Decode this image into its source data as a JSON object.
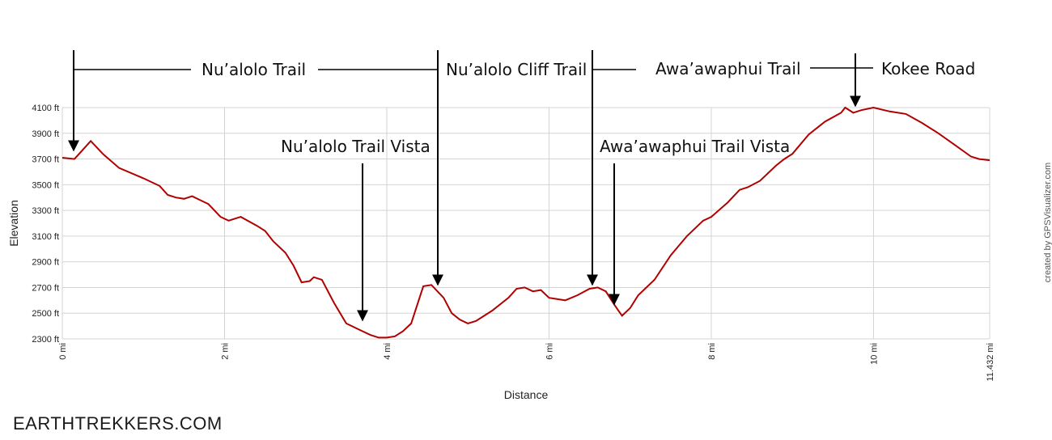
{
  "watermark": "EARTHTREKKERS.COM",
  "credit": "created by GPSVisualizer.com",
  "chart_data": {
    "type": "line",
    "title": "",
    "xlabel": "Distance",
    "ylabel": "Elevation",
    "xlim": [
      0,
      11.432
    ],
    "ylim": [
      2300,
      4100
    ],
    "x_ticks": [
      {
        "value": 0,
        "label": "0 mi"
      },
      {
        "value": 2,
        "label": "2 mi"
      },
      {
        "value": 4,
        "label": "4 mi"
      },
      {
        "value": 6,
        "label": "6 mi"
      },
      {
        "value": 8,
        "label": "8 mi"
      },
      {
        "value": 10,
        "label": "10 mi"
      },
      {
        "value": 11.432,
        "label": "11.432 mi"
      }
    ],
    "y_ticks": [
      {
        "value": 2300,
        "label": "2300 ft"
      },
      {
        "value": 2500,
        "label": "2500 ft"
      },
      {
        "value": 2700,
        "label": "2700 ft"
      },
      {
        "value": 2900,
        "label": "2900 ft"
      },
      {
        "value": 3100,
        "label": "3100 ft"
      },
      {
        "value": 3300,
        "label": "3300 ft"
      },
      {
        "value": 3500,
        "label": "3500 ft"
      },
      {
        "value": 3700,
        "label": "3700 ft"
      },
      {
        "value": 3900,
        "label": "3900 ft"
      },
      {
        "value": 4100,
        "label": "4100 ft"
      }
    ],
    "grid": true,
    "line_color": "#b00000",
    "series": [
      {
        "x": [
          0,
          0.15,
          0.25,
          0.35,
          0.5,
          0.7,
          1.0,
          1.2,
          1.3,
          1.4,
          1.5,
          1.6,
          1.8,
          1.95,
          2.05,
          2.2,
          2.4,
          2.5,
          2.6,
          2.75,
          2.85,
          2.95,
          3.05,
          3.1,
          3.2,
          3.35,
          3.5,
          3.7,
          3.8,
          3.9,
          4.0,
          4.1,
          4.2,
          4.3,
          4.45,
          4.55,
          4.7,
          4.8,
          4.9,
          5.0,
          5.1,
          5.3,
          5.5,
          5.6,
          5.7,
          5.8,
          5.9,
          6.0,
          6.1,
          6.2,
          6.35,
          6.5,
          6.6,
          6.7,
          6.8,
          6.9,
          7.0,
          7.1,
          7.3,
          7.5,
          7.7,
          7.9,
          8.0,
          8.2,
          8.35,
          8.45,
          8.6,
          8.8,
          8.9,
          9.0,
          9.2,
          9.4,
          9.6,
          9.65,
          9.75,
          9.85,
          10.0,
          10.2,
          10.4,
          10.6,
          10.8,
          11.0,
          11.2,
          11.3,
          11.432
        ],
        "values": [
          3710,
          3700,
          3770,
          3840,
          3740,
          3630,
          3550,
          3490,
          3420,
          3400,
          3390,
          3410,
          3350,
          3250,
          3220,
          3250,
          3180,
          3140,
          3060,
          2970,
          2870,
          2740,
          2750,
          2780,
          2760,
          2580,
          2420,
          2360,
          2330,
          2310,
          2310,
          2320,
          2360,
          2420,
          2710,
          2720,
          2620,
          2500,
          2450,
          2420,
          2440,
          2520,
          2620,
          2690,
          2700,
          2670,
          2680,
          2620,
          2610,
          2600,
          2640,
          2690,
          2700,
          2670,
          2570,
          2480,
          2540,
          2640,
          2760,
          2950,
          3100,
          3220,
          3250,
          3360,
          3460,
          3480,
          3530,
          3650,
          3700,
          3740,
          3890,
          3990,
          4060,
          4100,
          4060,
          4080,
          4100,
          4070,
          4050,
          3980,
          3900,
          3810,
          3720,
          3700,
          3690
        ]
      }
    ],
    "annotations": [
      {
        "label": "Nu’alolo Trail",
        "x": 0.15,
        "y": 3720
      },
      {
        "label": "Nu’alolo Cliff Trail",
        "x": 4.65,
        "y": 2720
      },
      {
        "label": "Awa’awaphui Trail",
        "x": 6.55,
        "y": 2710
      },
      {
        "label": "Kokee Road",
        "x": 9.75,
        "y": 4100
      },
      {
        "label": "Nu’alolo Trail Vista",
        "x": 3.7,
        "y": 2320
      },
      {
        "label": "Awa’awaphui Trail Vista",
        "x": 6.8,
        "y": 2540
      }
    ]
  }
}
